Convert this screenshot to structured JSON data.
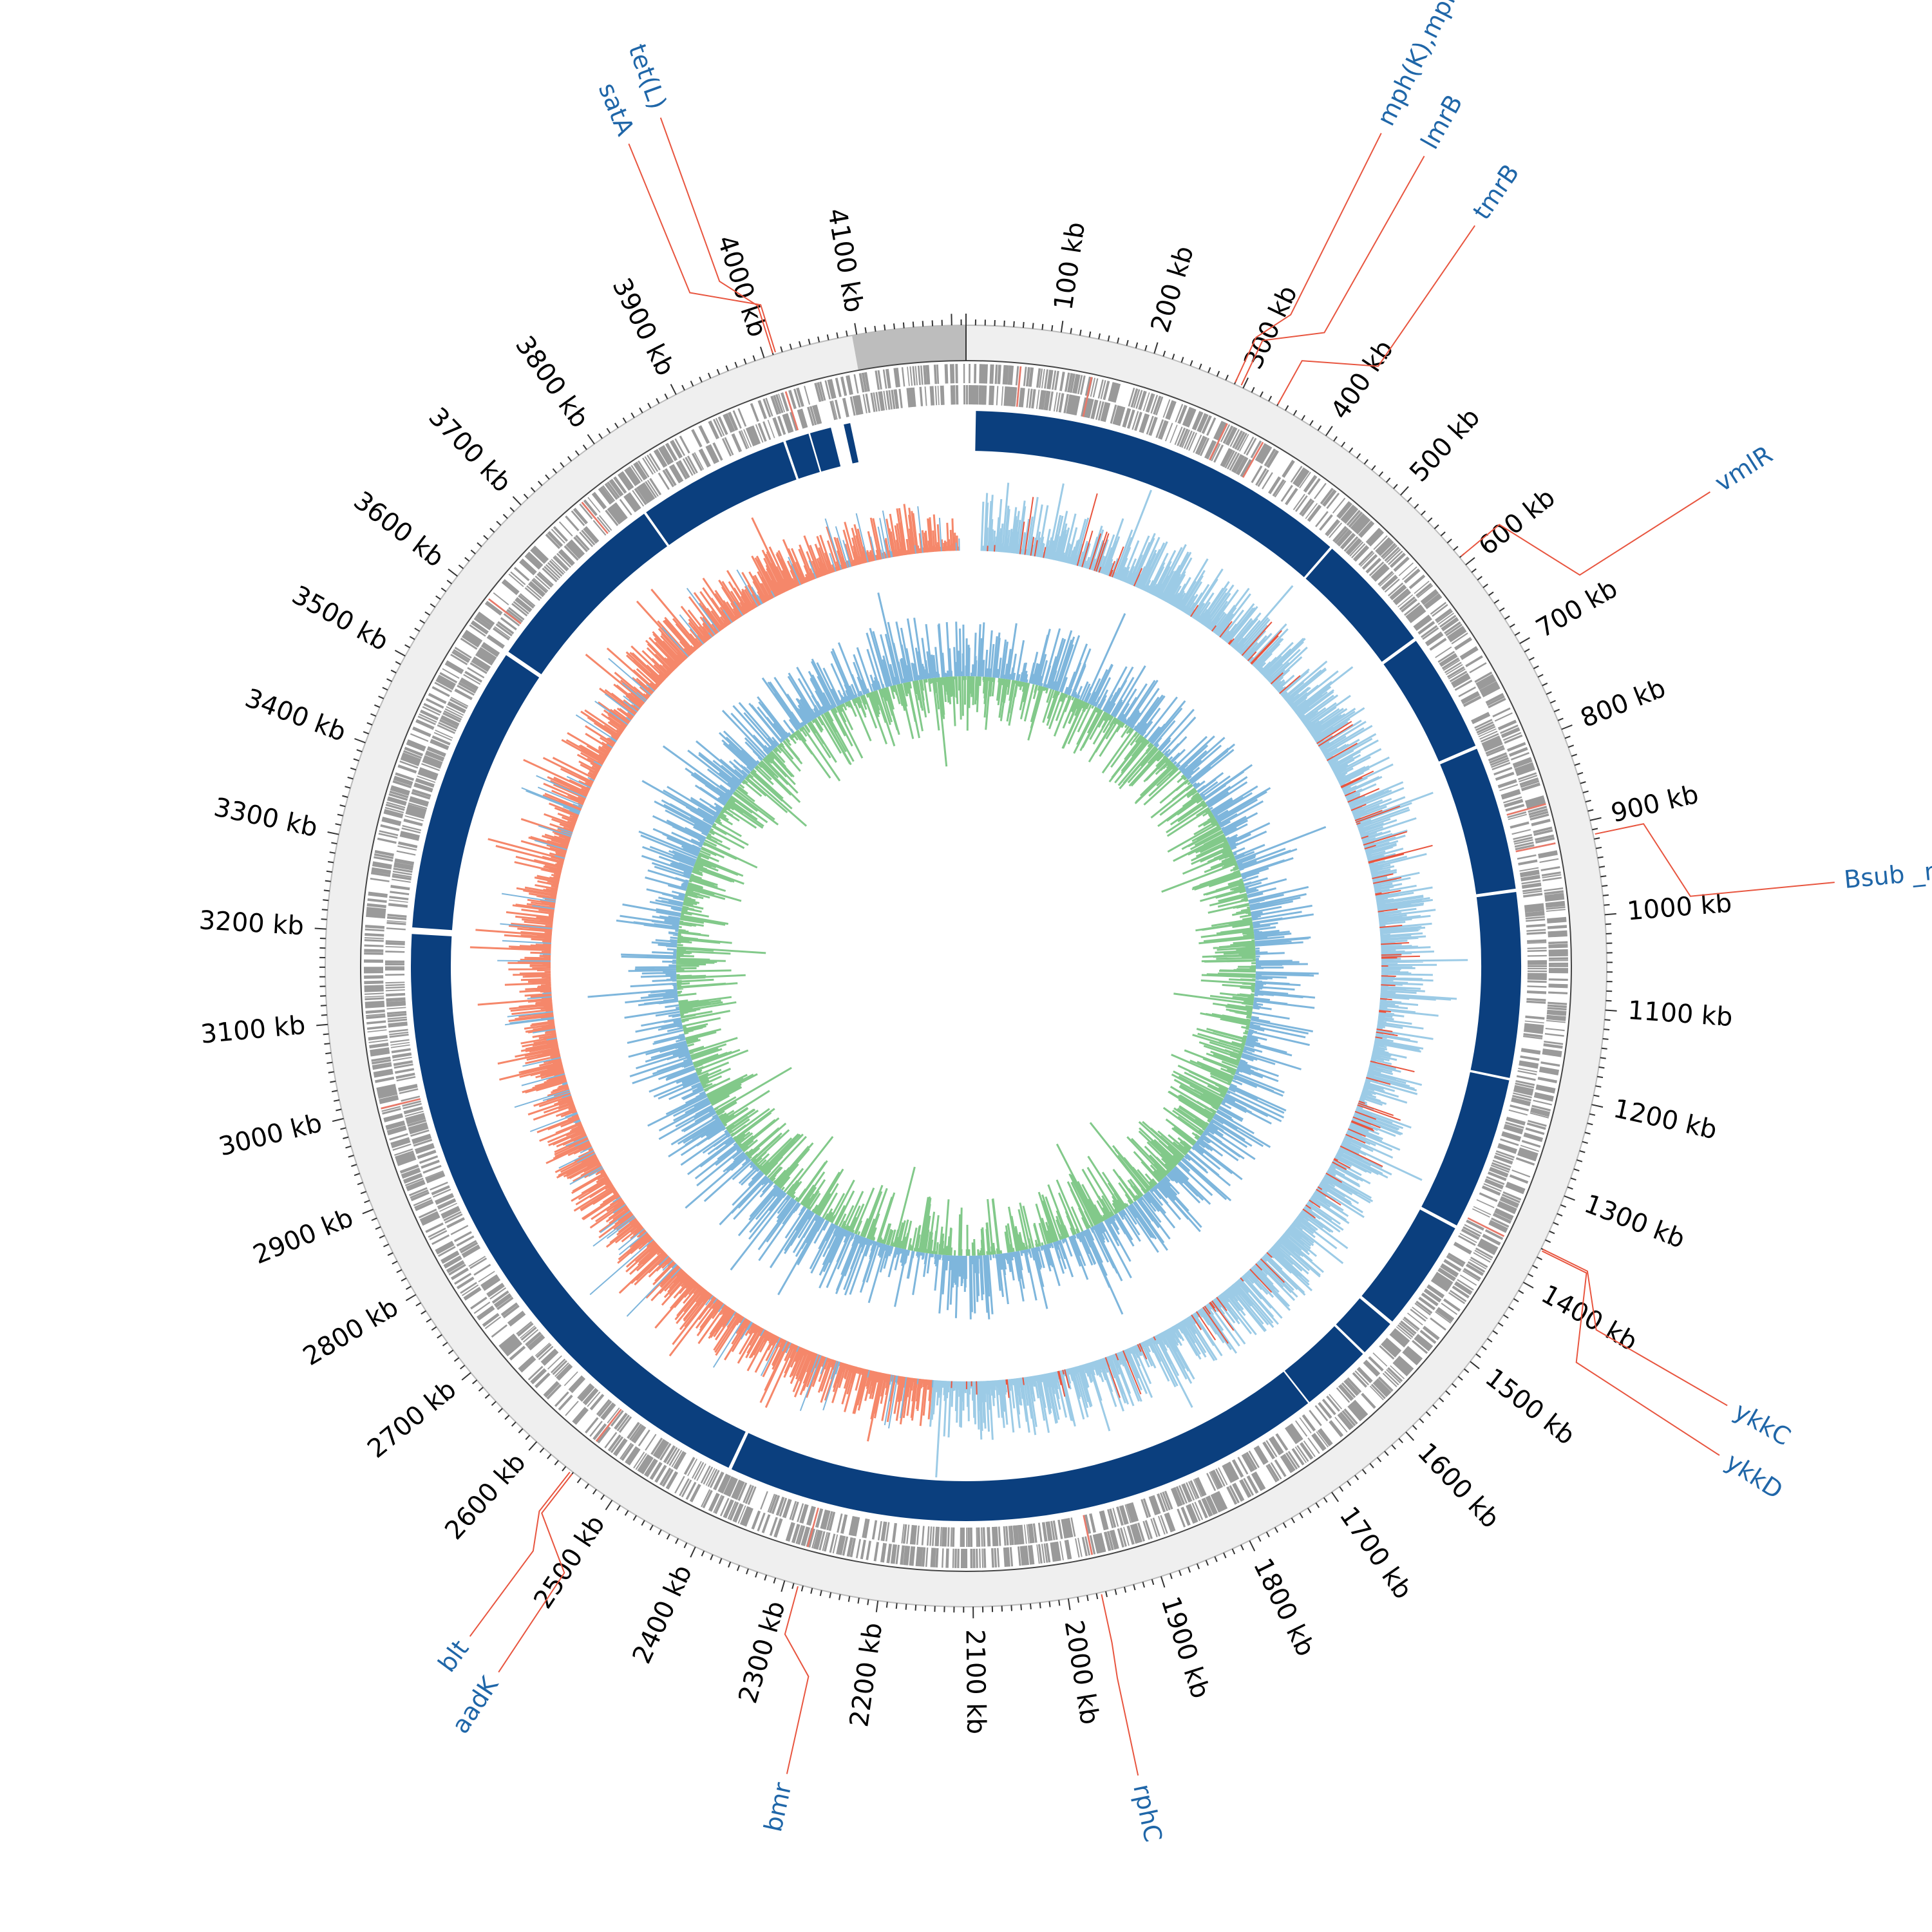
{
  "map": {
    "genome_length_kb": 4215,
    "tick_unit": "kb",
    "major_tick_step_kb": 100,
    "minor_tick_step_kb": 10,
    "colors": {
      "backbone": "#efefef",
      "contig_highlight": "#bdbdbd",
      "cds_features": "#9a9a9a",
      "cds_highlight": "#e8796a",
      "blast_hits": "#0b3f7e",
      "gc_skew_positive": "#9ccbe6",
      "gc_skew_negative": "#f5876a",
      "gc_content_positive": "#82c98a",
      "gc_content_negative": "#7eb6dc",
      "label_text": "#1f66a8",
      "label_line": "#e8553f"
    }
  },
  "tick_labels": [
    "100 kb",
    "200 kb",
    "300 kb",
    "400 kb",
    "500 kb",
    "600 kb",
    "700 kb",
    "800 kb",
    "900 kb",
    "1000 kb",
    "1100 kb",
    "1200 kb",
    "1300 kb",
    "1400 kb",
    "1500 kb",
    "1600 kb",
    "1700 kb",
    "1800 kb",
    "1900 kb",
    "2000 kb",
    "2100 kb",
    "2200 kb",
    "2300 kb",
    "2400 kb",
    "2500 kb",
    "2600 kb",
    "2700 kb",
    "2800 kb",
    "2900 kb",
    "3000 kb",
    "3100 kb",
    "3200 kb",
    "3300 kb",
    "3400 kb",
    "3500 kb",
    "3600 kb",
    "3700 kb",
    "3800 kb",
    "3900 kb",
    "4000 kb",
    "4100 kb"
  ],
  "gene_labels": [
    {
      "text": "mph(K),mphK",
      "position_kb": 290
    },
    {
      "text": "lmrB",
      "position_kb": 297
    },
    {
      "text": "tmrB",
      "position_kb": 340
    },
    {
      "text": "vmlR",
      "position_kb": 590
    },
    {
      "text": "Bsub _mprF",
      "position_kb": 915
    },
    {
      "text": "ykkC",
      "position_kb": 1360
    },
    {
      "text": "ykkD",
      "position_kb": 1362
    },
    {
      "text": "rphC",
      "position_kb": 1965
    },
    {
      "text": "bmr",
      "position_kb": 2285
    },
    {
      "text": "aadK",
      "position_kb": 2550
    },
    {
      "text": "blt",
      "position_kb": 2553
    },
    {
      "text": "tet(L)",
      "position_kb": 4010
    },
    {
      "text": "satA",
      "position_kb": 4013
    }
  ]
}
